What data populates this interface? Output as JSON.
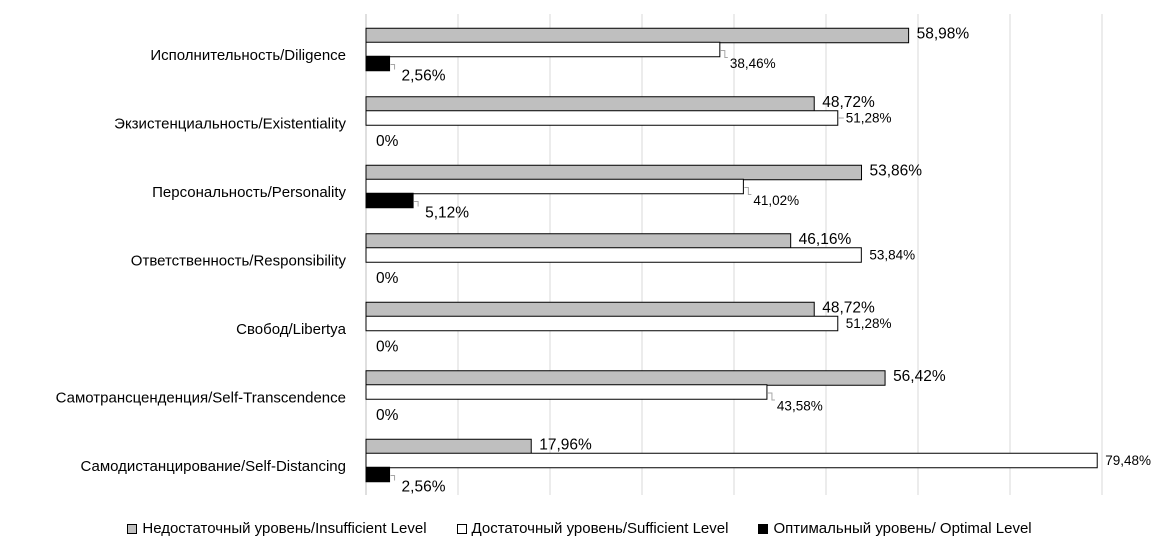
{
  "chart_data": {
    "type": "bar",
    "orientation": "horizontal",
    "categories": [
      "Исполнительность/Diligence",
      "Экзистенциальность/Existentiality",
      "Персональность/Personality",
      "Ответственность/Responsibility",
      "Свобод/Libertya",
      "Самотрансценденция/Self-Transcendence",
      "Самодистанцирование/Self-Distancing"
    ],
    "series": [
      {
        "name": "Недостаточный уровень/Insufficient Level",
        "color": "#bfbfbf",
        "values": [
          58.98,
          48.72,
          53.86,
          46.16,
          48.72,
          56.42,
          17.96
        ],
        "labels": [
          "58,98%",
          "48,72%",
          "53,86%",
          "46,16%",
          "48,72%",
          "56,42%",
          "17,96%"
        ]
      },
      {
        "name": "Достаточный уровень/Sufficient Level",
        "color": "#ffffff",
        "values": [
          38.46,
          51.28,
          41.02,
          53.84,
          51.28,
          43.58,
          79.48
        ],
        "labels": [
          "38,46%",
          "51,28%",
          "41,02%",
          "53,84%",
          "51,28%",
          "43,58%",
          "79,48%"
        ]
      },
      {
        "name": "Оптимальный уровень/ Optimal Level",
        "color": "#000000",
        "values": [
          2.56,
          0,
          5.12,
          0,
          0,
          0,
          2.56
        ],
        "labels": [
          "2,56%",
          "0%",
          "5,12%",
          "0%",
          "0%",
          "0%",
          "2,56%"
        ]
      }
    ],
    "xlim": [
      0,
      80
    ],
    "grid": true,
    "legend_position": "bottom"
  }
}
